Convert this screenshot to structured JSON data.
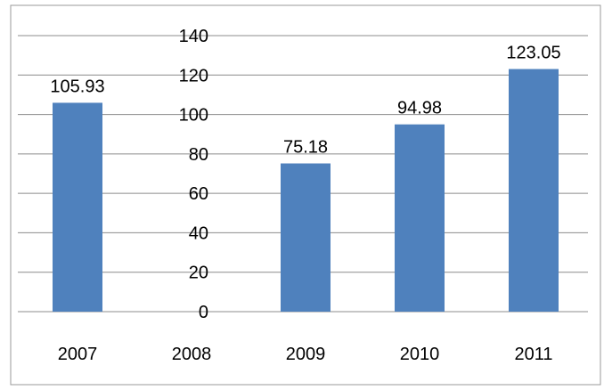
{
  "chart_data": {
    "type": "bar",
    "categories": [
      "2007",
      "2008",
      "2009",
      "2010",
      "2011"
    ],
    "values": [
      105.93,
      0,
      75.18,
      94.98,
      123.05
    ],
    "data_labels": [
      "105.93",
      "",
      "75.18",
      "94.98",
      "123.05"
    ],
    "yticks": [
      "0",
      "20",
      "40",
      "60",
      "80",
      "100",
      "120",
      "140"
    ],
    "ylim": [
      0,
      140
    ],
    "grid": true,
    "legend": "none",
    "colors": {
      "bar": "#4f81bd",
      "grid": "#8c8c8c"
    }
  }
}
